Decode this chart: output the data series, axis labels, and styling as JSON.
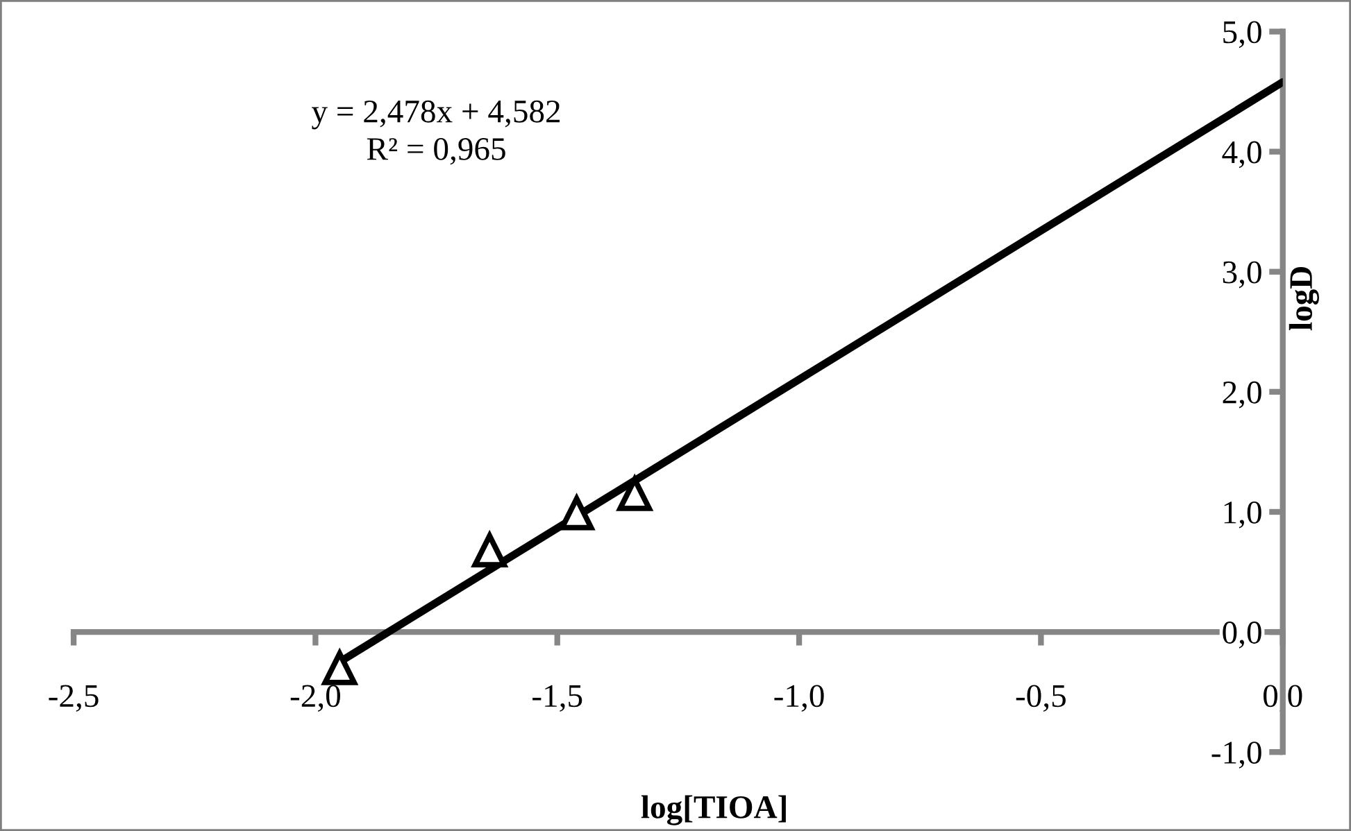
{
  "chart_data": {
    "type": "scatter",
    "xlabel": "log[TIOA]",
    "ylabel": "logD",
    "annotations": [
      "y = 2,478x + 4,582",
      "R² = 0,965"
    ],
    "series": [
      {
        "type": "scatter",
        "color": "#000000",
        "marker": "triangle",
        "x": [
          -1.95,
          -1.64,
          -1.46,
          -1.34
        ],
        "values": [
          -0.3,
          0.68,
          0.99,
          1.15
        ]
      },
      {
        "type": "line",
        "color": "#000000",
        "x": [
          -1.95,
          0
        ],
        "values": [
          -0.25,
          4.58
        ]
      }
    ],
    "xlim": [
      -2.5,
      0
    ],
    "ylim": [
      -1,
      5
    ],
    "xticks": [
      {
        "value": -2.5,
        "label": "-2,5"
      },
      {
        "value": -2.0,
        "label": "-2,0"
      },
      {
        "value": -1.5,
        "label": "-1,5"
      },
      {
        "value": -1.0,
        "label": "-1,0"
      },
      {
        "value": -0.5,
        "label": "-0,5"
      },
      {
        "value": 0,
        "label": "0,0"
      }
    ],
    "yticks": [
      {
        "value": -1,
        "label": "-1,0"
      },
      {
        "value": 0,
        "label": "0,0"
      },
      {
        "value": 1,
        "label": "1,0"
      },
      {
        "value": 2,
        "label": "2,0"
      },
      {
        "value": 3,
        "label": "3,0"
      },
      {
        "value": 4,
        "label": "4,0"
      },
      {
        "value": 5,
        "label": "5,0"
      }
    ]
  }
}
